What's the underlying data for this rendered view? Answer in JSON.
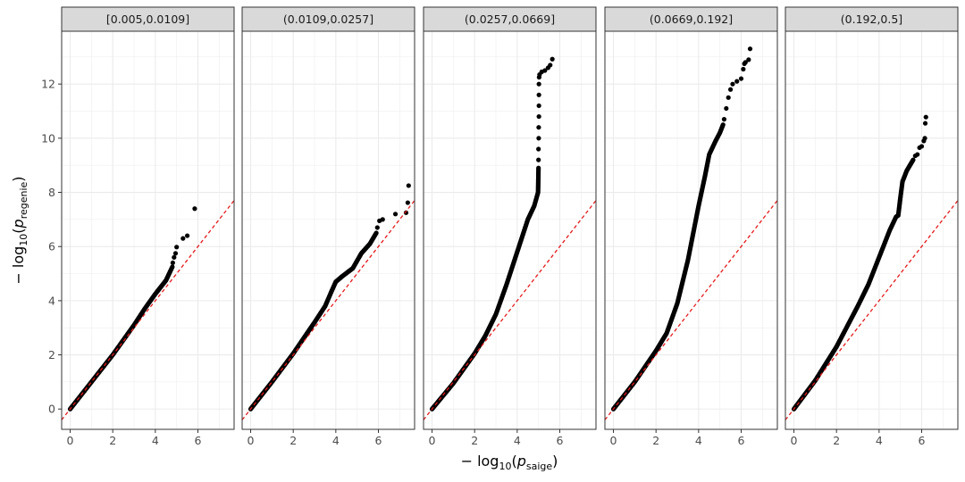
{
  "chart_data": {
    "type": "scatter",
    "facet_labels": [
      "[0.005,0.0109]",
      "(0.0109,0.0257]",
      "(0.0257,0.0669]",
      "(0.0669,0.192]",
      "(0.192,0.5]"
    ],
    "xlabel": {
      "prefix": "− log",
      "base": "10",
      "open": "(",
      "var": "p",
      "sub": "saige",
      "close": ")"
    },
    "ylabel": {
      "prefix": "− log",
      "base": "10",
      "open": "(",
      "var": "p",
      "sub": "regenie",
      "close": ")"
    },
    "xlim": [
      -0.4,
      7.7
    ],
    "ylim": [
      -0.75,
      13.95
    ],
    "x_ticks": [
      0,
      2,
      4,
      6
    ],
    "y_ticks": [
      0,
      2,
      4,
      6,
      8,
      10,
      12
    ],
    "grid": true,
    "reference_line": {
      "slope": 1,
      "intercept": 0,
      "color": "#e41a1c",
      "style": "dashed"
    },
    "point_color": "#000000",
    "panel_colors": {
      "strip_fill": "#d9d9d9",
      "border": "#333333",
      "grid": "#ebebeb"
    },
    "panels": [
      {
        "curve": [
          [
            0,
            0
          ],
          [
            1,
            1.0
          ],
          [
            2,
            2.0
          ],
          [
            3,
            3.1
          ],
          [
            3.5,
            3.7
          ],
          [
            4,
            4.25
          ],
          [
            4.5,
            4.75
          ],
          [
            4.8,
            5.25
          ]
        ],
        "points": [
          [
            4.82,
            5.4
          ],
          [
            4.88,
            5.6
          ],
          [
            4.95,
            5.75
          ],
          [
            5.0,
            5.98
          ],
          [
            5.3,
            6.3
          ],
          [
            5.5,
            6.4
          ],
          [
            5.85,
            7.4
          ]
        ]
      },
      {
        "curve": [
          [
            0,
            0
          ],
          [
            1,
            1.0
          ],
          [
            2,
            2.05
          ],
          [
            3,
            3.2
          ],
          [
            3.5,
            3.8
          ],
          [
            3.8,
            4.35
          ],
          [
            4.0,
            4.7
          ],
          [
            4.3,
            4.9
          ],
          [
            4.8,
            5.2
          ],
          [
            5.2,
            5.75
          ],
          [
            5.6,
            6.1
          ],
          [
            5.9,
            6.5
          ]
        ],
        "points": [
          [
            5.95,
            6.7
          ],
          [
            6.05,
            6.95
          ],
          [
            6.2,
            7.0
          ],
          [
            6.8,
            7.2
          ],
          [
            7.3,
            7.25
          ],
          [
            7.38,
            7.62
          ],
          [
            7.42,
            8.25
          ]
        ]
      },
      {
        "curve": [
          [
            0,
            0
          ],
          [
            1,
            0.95
          ],
          [
            2,
            2.05
          ],
          [
            2.5,
            2.7
          ],
          [
            3,
            3.5
          ],
          [
            3.5,
            4.6
          ],
          [
            4.0,
            5.8
          ],
          [
            4.5,
            7.0
          ],
          [
            4.8,
            7.5
          ],
          [
            4.98,
            8.0
          ],
          [
            5.0,
            8.9
          ]
        ],
        "points": [
          [
            5.0,
            9.2
          ],
          [
            5.0,
            9.6
          ],
          [
            5.01,
            10.0
          ],
          [
            5.01,
            10.4
          ],
          [
            5.02,
            10.8
          ],
          [
            5.02,
            11.2
          ],
          [
            5.02,
            11.6
          ],
          [
            5.02,
            12.0
          ],
          [
            5.03,
            12.25
          ],
          [
            5.05,
            12.35
          ],
          [
            5.15,
            12.45
          ],
          [
            5.3,
            12.5
          ],
          [
            5.45,
            12.6
          ],
          [
            5.55,
            12.7
          ],
          [
            5.65,
            12.92
          ]
        ]
      },
      {
        "curve": [
          [
            0,
            0
          ],
          [
            1,
            1.0
          ],
          [
            2,
            2.15
          ],
          [
            2.5,
            2.8
          ],
          [
            3,
            3.9
          ],
          [
            3.5,
            5.5
          ],
          [
            4.0,
            7.5
          ],
          [
            4.3,
            8.6
          ],
          [
            4.5,
            9.4
          ],
          [
            4.8,
            9.9
          ],
          [
            5.0,
            10.2
          ],
          [
            5.15,
            10.5
          ]
        ],
        "points": [
          [
            5.2,
            10.7
          ],
          [
            5.3,
            11.1
          ],
          [
            5.4,
            11.5
          ],
          [
            5.5,
            11.8
          ],
          [
            5.6,
            12.0
          ],
          [
            5.8,
            12.1
          ],
          [
            6.0,
            12.2
          ],
          [
            6.1,
            12.55
          ],
          [
            6.15,
            12.75
          ],
          [
            6.2,
            12.8
          ],
          [
            6.35,
            12.9
          ],
          [
            6.42,
            13.3
          ]
        ]
      },
      {
        "curve": [
          [
            0,
            0
          ],
          [
            1,
            1.05
          ],
          [
            2,
            2.3
          ],
          [
            3,
            3.8
          ],
          [
            3.5,
            4.6
          ],
          [
            4,
            5.6
          ],
          [
            4.5,
            6.6
          ],
          [
            4.8,
            7.1
          ],
          [
            4.9,
            7.15
          ],
          [
            5.0,
            7.8
          ],
          [
            5.1,
            8.4
          ],
          [
            5.3,
            8.8
          ],
          [
            5.6,
            9.2
          ]
        ],
        "points": [
          [
            5.7,
            9.35
          ],
          [
            5.8,
            9.4
          ],
          [
            5.9,
            9.65
          ],
          [
            6.0,
            9.7
          ],
          [
            6.1,
            9.9
          ],
          [
            6.15,
            10.0
          ],
          [
            6.17,
            10.55
          ],
          [
            6.2,
            10.78
          ]
        ]
      }
    ]
  }
}
